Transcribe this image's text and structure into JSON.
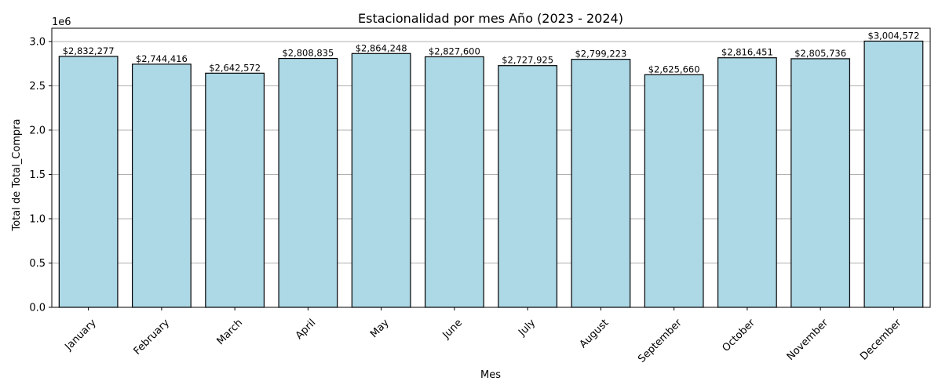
{
  "chart_data": {
    "type": "bar",
    "title": "Estacionalidad por mes Año (2023 - 2024)",
    "xlabel": "Mes",
    "ylabel": "Total de Total_Compra",
    "y_offset_label": "1e6",
    "categories": [
      "January",
      "February",
      "March",
      "April",
      "May",
      "June",
      "July",
      "August",
      "September",
      "October",
      "November",
      "December"
    ],
    "values": [
      2832277,
      2744416,
      2642572,
      2808835,
      2864248,
      2827600,
      2727925,
      2799223,
      2625660,
      2816451,
      2805736,
      3004572
    ],
    "data_labels": [
      "$2,832,277",
      "$2,744,416",
      "$2,642,572",
      "$2,808,835",
      "$2,864,248",
      "$2,827,600",
      "$2,727,925",
      "$2,799,223",
      "$2,625,660",
      "$2,816,451",
      "$2,805,736",
      "$3,004,572"
    ],
    "ylim": [
      0,
      3150000
    ],
    "yticks": [
      0,
      500000,
      1000000,
      1500000,
      2000000,
      2500000,
      3000000
    ],
    "ytick_labels": [
      "0.0",
      "0.5",
      "1.0",
      "1.5",
      "2.0",
      "2.5",
      "3.0"
    ],
    "grid": "y",
    "x_tick_rotation": 45,
    "colors": {
      "bar_fill": "#add8e6",
      "bar_edge": "#000000",
      "grid": "#b0b0b0"
    }
  }
}
